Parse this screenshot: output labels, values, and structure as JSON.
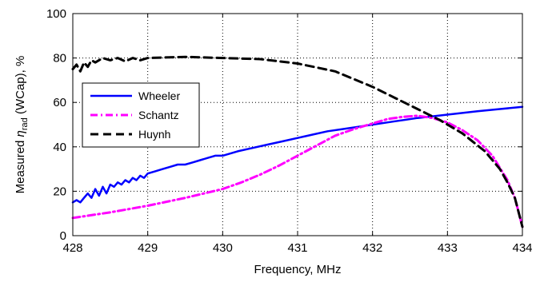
{
  "chart_data": {
    "type": "line",
    "xlabel": "Frequency, MHz",
    "ylabel_parts": {
      "prefix": "Measured ",
      "eta": "η",
      "sub": "rad",
      "suffix": " (WCap), %"
    },
    "xlim": [
      428,
      434
    ],
    "ylim": [
      0,
      100
    ],
    "xticks": [
      428,
      429,
      430,
      431,
      432,
      433,
      434
    ],
    "yticks": [
      0,
      20,
      40,
      60,
      80,
      100
    ],
    "grid": true,
    "legend_position": "middle-left",
    "series": [
      {
        "name": "Wheeler",
        "color": "#0000ff",
        "style": "solid",
        "x": [
          428.0,
          428.05,
          428.1,
          428.15,
          428.2,
          428.25,
          428.3,
          428.35,
          428.4,
          428.45,
          428.5,
          428.55,
          428.6,
          428.65,
          428.7,
          428.75,
          428.8,
          428.85,
          428.9,
          428.95,
          429.0,
          429.1,
          429.2,
          429.3,
          429.4,
          429.5,
          429.6,
          429.7,
          429.8,
          429.9,
          430.0,
          430.2,
          430.4,
          430.6,
          430.8,
          431.0,
          431.2,
          431.4,
          431.6,
          431.8,
          432.0,
          432.3,
          432.6,
          433.0,
          433.4,
          433.7,
          434.0
        ],
        "y": [
          15,
          16,
          15,
          17,
          19,
          17,
          21,
          18,
          22,
          19,
          23,
          22,
          24,
          23,
          25,
          24,
          26,
          25,
          27,
          26,
          28,
          29,
          30,
          31,
          32,
          32,
          33,
          34,
          35,
          36,
          36,
          38,
          39.5,
          41,
          42.5,
          44,
          45.5,
          47,
          48,
          49,
          50,
          51.5,
          53,
          54.5,
          56,
          57,
          58
        ]
      },
      {
        "name": "Schantz",
        "color": "#ff00ff",
        "style": "dashdot",
        "x": [
          428.0,
          428.5,
          429.0,
          429.5,
          430.0,
          430.25,
          430.5,
          430.75,
          431.0,
          431.25,
          431.5,
          431.75,
          432.0,
          432.2,
          432.4,
          432.6,
          432.8,
          433.0,
          433.2,
          433.4,
          433.6,
          433.8,
          433.9,
          434.0
        ],
        "y": [
          8,
          10.5,
          13.5,
          17,
          21,
          24,
          27.5,
          31.5,
          36,
          40.5,
          45,
          48,
          50.5,
          52.5,
          53.5,
          54,
          53,
          51,
          47.5,
          43,
          36,
          25,
          17,
          4
        ]
      },
      {
        "name": "Huynh",
        "color": "#000000",
        "style": "dashed",
        "x": [
          428.0,
          428.05,
          428.1,
          428.15,
          428.2,
          428.25,
          428.3,
          428.4,
          428.5,
          428.6,
          428.7,
          428.8,
          428.9,
          429.0,
          429.5,
          430.0,
          430.5,
          431.0,
          431.5,
          432.0,
          432.3,
          432.6,
          432.9,
          433.2,
          433.5,
          433.7,
          433.8,
          433.9,
          434.0
        ],
        "y": [
          75,
          77,
          74,
          78,
          76,
          79,
          78,
          80,
          79,
          80,
          78.5,
          80,
          79,
          80,
          80.5,
          80,
          79.5,
          77.5,
          74,
          67,
          62,
          57,
          52,
          46,
          38,
          30,
          24,
          17,
          4
        ]
      }
    ]
  }
}
